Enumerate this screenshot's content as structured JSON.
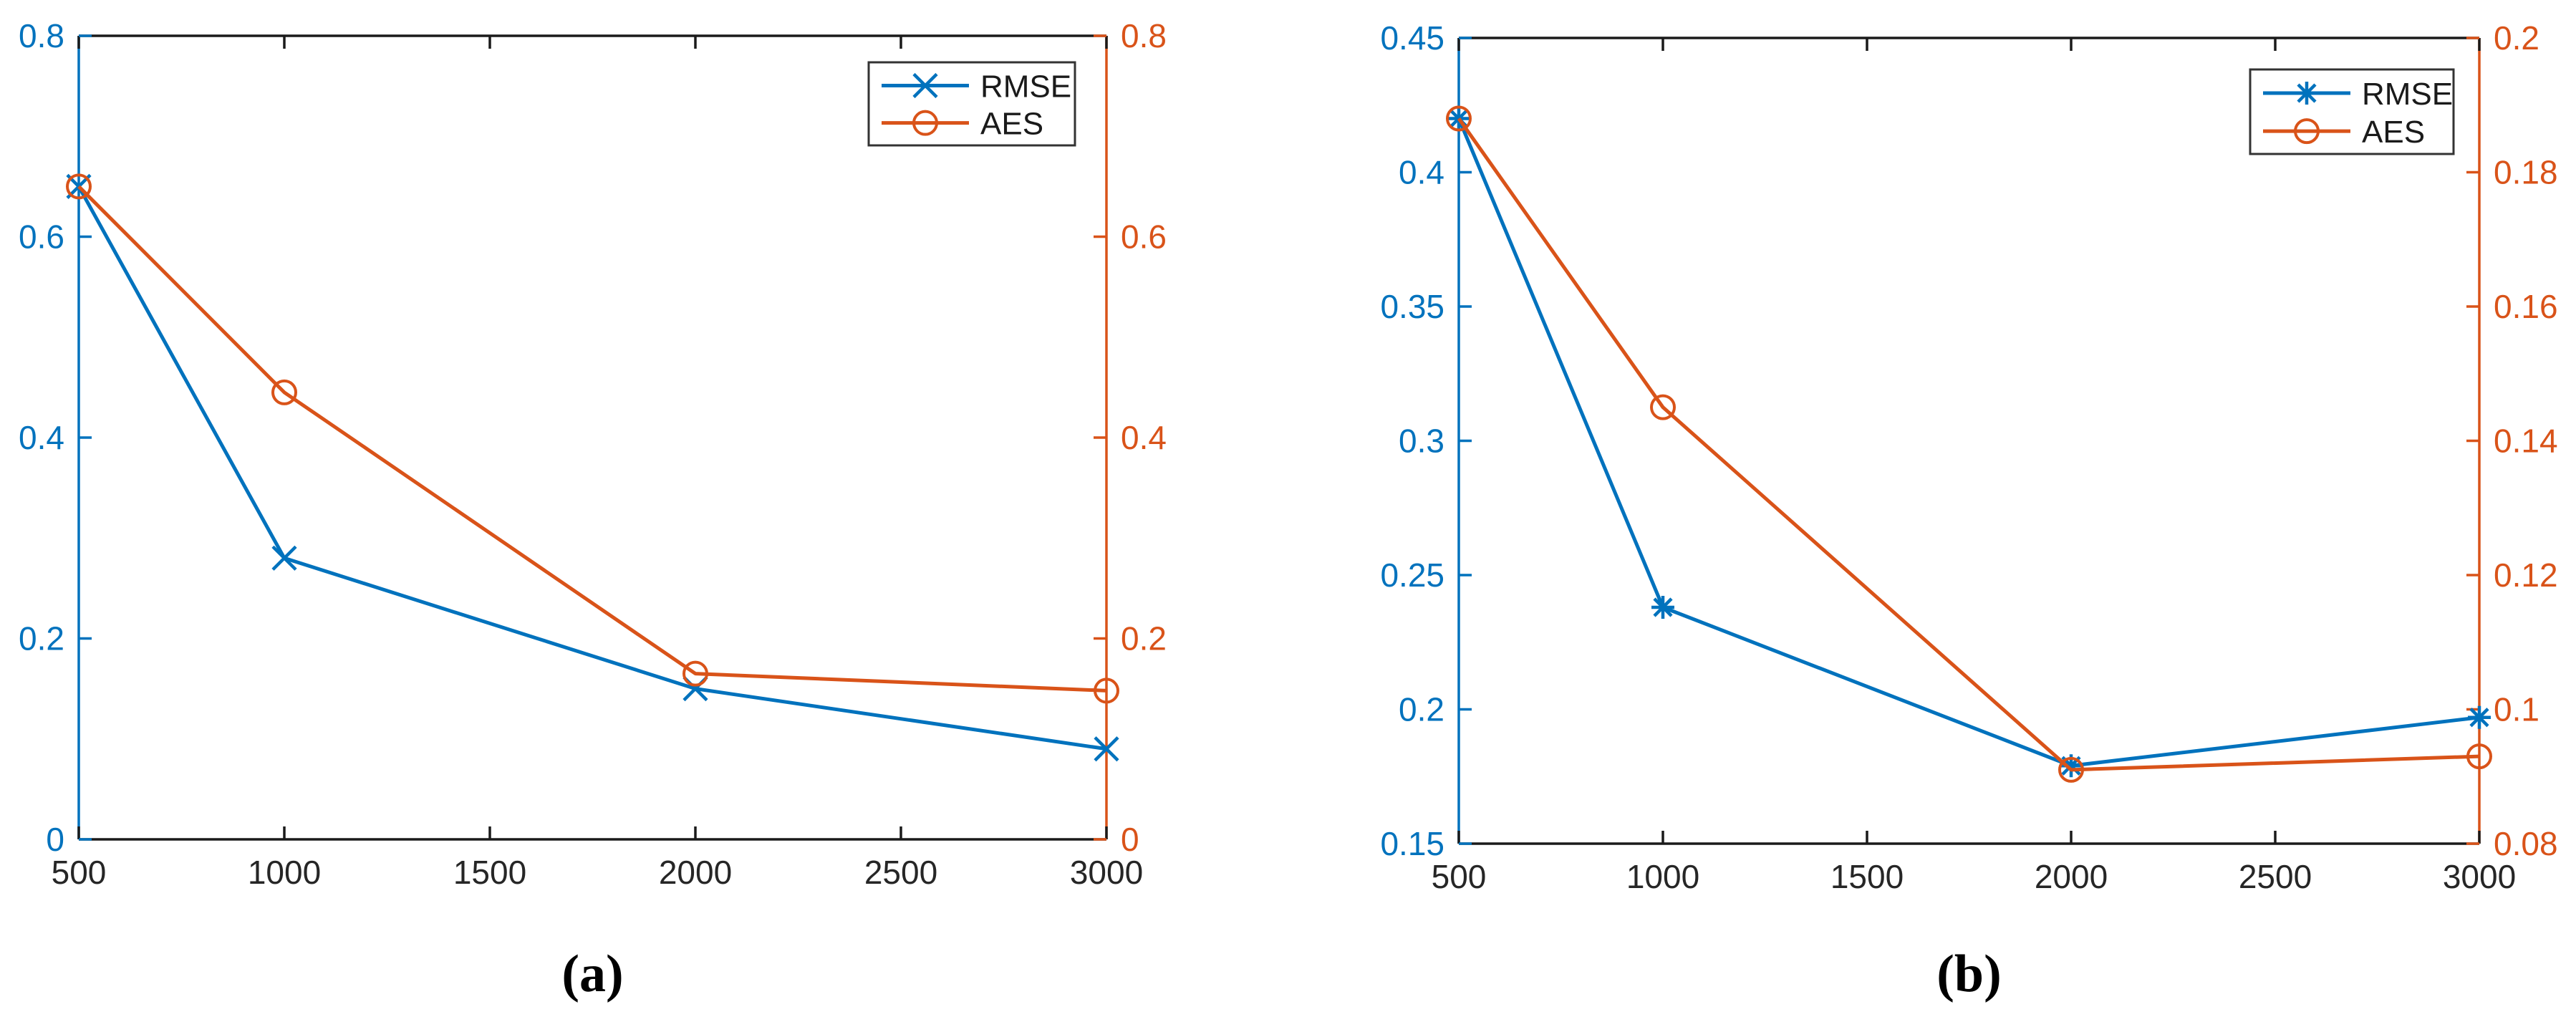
{
  "figure": {
    "background": "#ffffff",
    "captions": {
      "a": "(a)",
      "b": "(b)"
    }
  },
  "colors": {
    "rmse_blue": "#0072BD",
    "aes_orange": "#D95319",
    "axis_text": "#262626",
    "box_line": "#1a1a1a",
    "legend_border": "#333333"
  },
  "chart_data": [
    {
      "id": "a",
      "type": "line",
      "caption": "(a)",
      "x": [
        500,
        1000,
        2000,
        3000
      ],
      "xlim": [
        500,
        3000
      ],
      "x_ticks": [
        500,
        1000,
        1500,
        2000,
        2500,
        3000
      ],
      "x_tick_labels": [
        "500",
        "1000",
        "1500",
        "2000",
        "2500",
        "3000"
      ],
      "left_axis": {
        "lim": [
          0,
          0.8
        ],
        "ticks": [
          0,
          0.2,
          0.4,
          0.6,
          0.8
        ],
        "labels": [
          "0",
          "0.2",
          "0.4",
          "0.6",
          "0.8"
        ],
        "color": "#0072BD"
      },
      "right_axis": {
        "lim": [
          0,
          0.8
        ],
        "ticks": [
          0,
          0.2,
          0.4,
          0.6,
          0.8
        ],
        "labels": [
          "0",
          "0.2",
          "0.4",
          "0.6",
          "0.8"
        ],
        "color": "#D95319"
      },
      "series": [
        {
          "name": "RMSE",
          "axis": "left",
          "marker": "x",
          "color": "#0072BD",
          "values": [
            0.65,
            0.28,
            0.15,
            0.09
          ]
        },
        {
          "name": "AES",
          "axis": "right",
          "marker": "circle",
          "color": "#D95319",
          "values": [
            0.65,
            0.445,
            0.165,
            0.148
          ]
        }
      ],
      "legend": {
        "position": "top-right",
        "entries": [
          "RMSE",
          "AES"
        ]
      },
      "grid": false
    },
    {
      "id": "b",
      "type": "line",
      "caption": "(b)",
      "x": [
        500,
        1000,
        2000,
        3000
      ],
      "xlim": [
        500,
        3000
      ],
      "x_ticks": [
        500,
        1000,
        1500,
        2000,
        2500,
        3000
      ],
      "x_tick_labels": [
        "500",
        "1000",
        "1500",
        "2000",
        "2500",
        "3000"
      ],
      "left_axis": {
        "lim": [
          0.15,
          0.45
        ],
        "ticks": [
          0.15,
          0.2,
          0.25,
          0.3,
          0.35,
          0.4,
          0.45
        ],
        "labels": [
          "0.15",
          "0.2",
          "0.25",
          "0.3",
          "0.35",
          "0.4",
          "0.45"
        ],
        "color": "#0072BD"
      },
      "right_axis": {
        "lim": [
          0.08,
          0.2
        ],
        "ticks": [
          0.08,
          0.1,
          0.12,
          0.14,
          0.16,
          0.18,
          0.2
        ],
        "labels": [
          "0.08",
          "0.1",
          "0.12",
          "0.14",
          "0.16",
          "0.18",
          "0.2"
        ],
        "color": "#D95319"
      },
      "series": [
        {
          "name": "RMSE",
          "axis": "left",
          "marker": "asterisk",
          "color": "#0072BD",
          "values": [
            0.42,
            0.238,
            0.179,
            0.197
          ]
        },
        {
          "name": "AES",
          "axis": "right",
          "marker": "circle",
          "color": "#D95319",
          "values": [
            0.188,
            0.145,
            0.091,
            0.093
          ]
        }
      ],
      "legend": {
        "position": "top-right",
        "entries": [
          "RMSE",
          "AES"
        ]
      },
      "grid": false
    }
  ]
}
